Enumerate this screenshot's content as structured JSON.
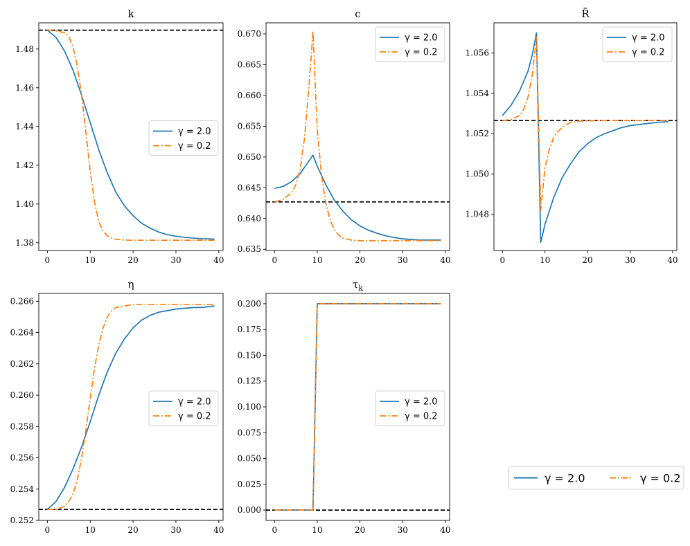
{
  "chart_data": [
    {
      "type": "line",
      "title": "k",
      "x": [
        0,
        10,
        20,
        30,
        40
      ],
      "xlim": [
        -2,
        41
      ],
      "ylim": [
        1.376,
        1.4935
      ],
      "yticks": [
        1.38,
        1.4,
        1.42,
        1.44,
        1.46,
        1.48
      ],
      "ytick_labels": [
        "1.38",
        "1.40",
        "1.42",
        "1.44",
        "1.46",
        "1.48"
      ],
      "xtick_labels": [
        "0",
        "10",
        "20",
        "30",
        "40"
      ],
      "steady_state": 1.4897,
      "legend_position": "center-right",
      "series": [
        {
          "name": "γ = 2.0",
          "color": "#1f77b4",
          "style": "solid",
          "x": [
            0,
            2,
            4,
            6,
            8,
            10,
            12,
            14,
            16,
            18,
            20,
            22,
            24,
            26,
            28,
            30,
            32,
            34,
            36,
            39
          ],
          "values": [
            1.4897,
            1.486,
            1.479,
            1.469,
            1.456,
            1.442,
            1.428,
            1.416,
            1.406,
            1.399,
            1.394,
            1.39,
            1.3875,
            1.3855,
            1.3842,
            1.3834,
            1.3828,
            1.3824,
            1.3821,
            1.3819
          ]
        },
        {
          "name": "γ = 0.2",
          "color": "#ff7f0e",
          "style": "dashdot",
          "x": [
            0,
            2,
            4,
            5,
            6,
            7,
            8,
            9,
            10,
            11,
            12,
            13,
            14,
            15,
            16,
            18,
            20,
            25,
            30,
            39
          ],
          "values": [
            1.4897,
            1.4893,
            1.4884,
            1.4865,
            1.481,
            1.471,
            1.456,
            1.437,
            1.417,
            1.401,
            1.391,
            1.386,
            1.3835,
            1.3824,
            1.3818,
            1.3814,
            1.3813,
            1.3813,
            1.3813,
            1.3813
          ]
        }
      ]
    },
    {
      "type": "line",
      "title": "c",
      "x": [
        0,
        10,
        20,
        30,
        40
      ],
      "xlim": [
        -2,
        41
      ],
      "ylim": [
        0.6348,
        0.6718
      ],
      "yticks": [
        0.635,
        0.64,
        0.645,
        0.65,
        0.655,
        0.66,
        0.665,
        0.67
      ],
      "ytick_labels": [
        "0.635",
        "0.640",
        "0.645",
        "0.650",
        "0.655",
        "0.660",
        "0.665",
        "0.670"
      ],
      "xtick_labels": [
        "0",
        "10",
        "20",
        "30",
        "40"
      ],
      "steady_state": 0.6427,
      "legend_position": "upper-right",
      "series": [
        {
          "name": "γ = 2.0",
          "color": "#1f77b4",
          "style": "solid",
          "x": [
            0,
            2,
            4,
            6,
            8,
            9,
            10,
            12,
            14,
            16,
            18,
            20,
            22,
            24,
            26,
            28,
            30,
            32,
            34,
            36,
            39
          ],
          "values": [
            0.6449,
            0.6452,
            0.646,
            0.6473,
            0.6493,
            0.6503,
            0.6485,
            0.6455,
            0.643,
            0.6412,
            0.6398,
            0.6388,
            0.6381,
            0.6376,
            0.6372,
            0.6369,
            0.6367,
            0.6366,
            0.6365,
            0.6365,
            0.6365
          ]
        },
        {
          "name": "γ = 0.2",
          "color": "#ff7f0e",
          "style": "dashdot",
          "x": [
            0,
            2,
            4,
            5,
            6,
            7,
            8,
            8.5,
            9,
            9.5,
            10,
            11,
            12,
            13,
            14,
            15,
            16,
            18,
            20,
            25,
            30,
            39
          ],
          "values": [
            0.6427,
            0.6431,
            0.6442,
            0.6455,
            0.648,
            0.653,
            0.661,
            0.6655,
            0.6705,
            0.662,
            0.6545,
            0.647,
            0.6425,
            0.6398,
            0.6382,
            0.6373,
            0.6368,
            0.6365,
            0.6364,
            0.6364,
            0.6364,
            0.6364
          ]
        }
      ]
    },
    {
      "type": "line",
      "title": "R̄",
      "x": [
        0,
        10,
        20,
        30,
        40
      ],
      "xlim": [
        -2,
        41
      ],
      "ylim": [
        1.0462,
        1.0575
      ],
      "yticks": [
        1.048,
        1.05,
        1.052,
        1.054,
        1.056
      ],
      "ytick_labels": [
        "1.048",
        "1.050",
        "1.052",
        "1.054",
        "1.056"
      ],
      "xtick_labels": [
        "0",
        "10",
        "20",
        "30",
        "40"
      ],
      "steady_state": 1.05265,
      "legend_position": "upper-right",
      "series": [
        {
          "name": "γ = 2.0",
          "color": "#1f77b4",
          "style": "solid",
          "x": [
            0,
            2,
            4,
            6,
            7,
            8,
            9,
            10,
            12,
            14,
            16,
            18,
            20,
            22,
            24,
            26,
            28,
            30,
            32,
            34,
            36,
            39
          ],
          "values": [
            1.0529,
            1.0534,
            1.0541,
            1.0551,
            1.0559,
            1.057,
            1.0466,
            1.0475,
            1.0488,
            1.0498,
            1.0505,
            1.0511,
            1.0515,
            1.0518,
            1.052,
            1.05215,
            1.0523,
            1.0524,
            1.05245,
            1.0525,
            1.05255,
            1.0526
          ]
        },
        {
          "name": "γ = 0.2",
          "color": "#ff7f0e",
          "style": "dashdot",
          "x": [
            0,
            2,
            4,
            5,
            6,
            7,
            8,
            9,
            10,
            11,
            12,
            13,
            14,
            15,
            16,
            18,
            20,
            25,
            30,
            39
          ],
          "values": [
            1.05265,
            1.0527,
            1.0529,
            1.0532,
            1.0538,
            1.0549,
            1.0568,
            1.0482,
            1.0503,
            1.0512,
            1.0518,
            1.0521,
            1.0523,
            1.05245,
            1.05255,
            1.05262,
            1.05264,
            1.05265,
            1.05265,
            1.05265
          ]
        }
      ]
    },
    {
      "type": "line",
      "title": "η",
      "x": [
        0,
        10,
        20,
        30,
        40
      ],
      "xlim": [
        -2,
        41
      ],
      "ylim": [
        0.252,
        0.2665
      ],
      "yticks": [
        0.252,
        0.254,
        0.256,
        0.258,
        0.26,
        0.262,
        0.264,
        0.266
      ],
      "ytick_labels": [
        "0.252",
        "0.254",
        "0.256",
        "0.258",
        "0.260",
        "0.262",
        "0.264",
        "0.266"
      ],
      "xtick_labels": [
        "0",
        "10",
        "20",
        "30",
        "40"
      ],
      "steady_state": 0.2527,
      "legend_position": "center-right",
      "series": [
        {
          "name": "γ = 2.0",
          "color": "#1f77b4",
          "style": "solid",
          "x": [
            0,
            2,
            4,
            6,
            8,
            10,
            12,
            14,
            16,
            18,
            20,
            22,
            24,
            26,
            28,
            30,
            32,
            34,
            36,
            39
          ],
          "values": [
            0.2527,
            0.2532,
            0.2541,
            0.2553,
            0.2567,
            0.2583,
            0.26,
            0.2615,
            0.2627,
            0.2636,
            0.2643,
            0.2648,
            0.2651,
            0.2653,
            0.2654,
            0.2655,
            0.26555,
            0.2656,
            0.2656,
            0.2657
          ]
        },
        {
          "name": "γ = 0.2",
          "color": "#ff7f0e",
          "style": "dashdot",
          "x": [
            0,
            2,
            4,
            5,
            6,
            7,
            8,
            9,
            10,
            11,
            12,
            13,
            14,
            15,
            16,
            18,
            20,
            25,
            30,
            39
          ],
          "values": [
            0.2527,
            0.2527,
            0.2529,
            0.2532,
            0.2537,
            0.2546,
            0.256,
            0.2578,
            0.2598,
            0.2617,
            0.2632,
            0.2643,
            0.265,
            0.2654,
            0.2656,
            0.2657,
            0.2658,
            0.2658,
            0.2658,
            0.2658
          ]
        }
      ]
    },
    {
      "type": "line",
      "title": "τk",
      "title_base": "τ",
      "title_sub": "k",
      "x": [
        0,
        10,
        20,
        30,
        40
      ],
      "xlim": [
        -2,
        41
      ],
      "ylim": [
        -0.01,
        0.21
      ],
      "yticks": [
        0.0,
        0.025,
        0.05,
        0.075,
        0.1,
        0.125,
        0.15,
        0.175,
        0.2
      ],
      "ytick_labels": [
        "0.000",
        "0.025",
        "0.050",
        "0.075",
        "0.100",
        "0.125",
        "0.150",
        "0.175",
        "0.200"
      ],
      "xtick_labels": [
        "0",
        "10",
        "20",
        "30",
        "40"
      ],
      "steady_state": 0.0,
      "legend_position": "center-right",
      "series": [
        {
          "name": "γ = 2.0",
          "color": "#1f77b4",
          "style": "solid",
          "x": [
            0,
            9,
            10,
            39
          ],
          "values": [
            0.0,
            0.0,
            0.2,
            0.2
          ]
        },
        {
          "name": "γ = 0.2",
          "color": "#ff7f0e",
          "style": "dashdot",
          "x": [
            0,
            9,
            10,
            39
          ],
          "values": [
            0.0,
            0.0,
            0.2,
            0.2
          ]
        }
      ]
    }
  ],
  "figure_legend": {
    "entries": [
      {
        "name": "γ = 2.0",
        "color": "#1f77b4",
        "style": "solid"
      },
      {
        "name": "γ = 0.2",
        "color": "#ff7f0e",
        "style": "dashdot"
      }
    ]
  }
}
